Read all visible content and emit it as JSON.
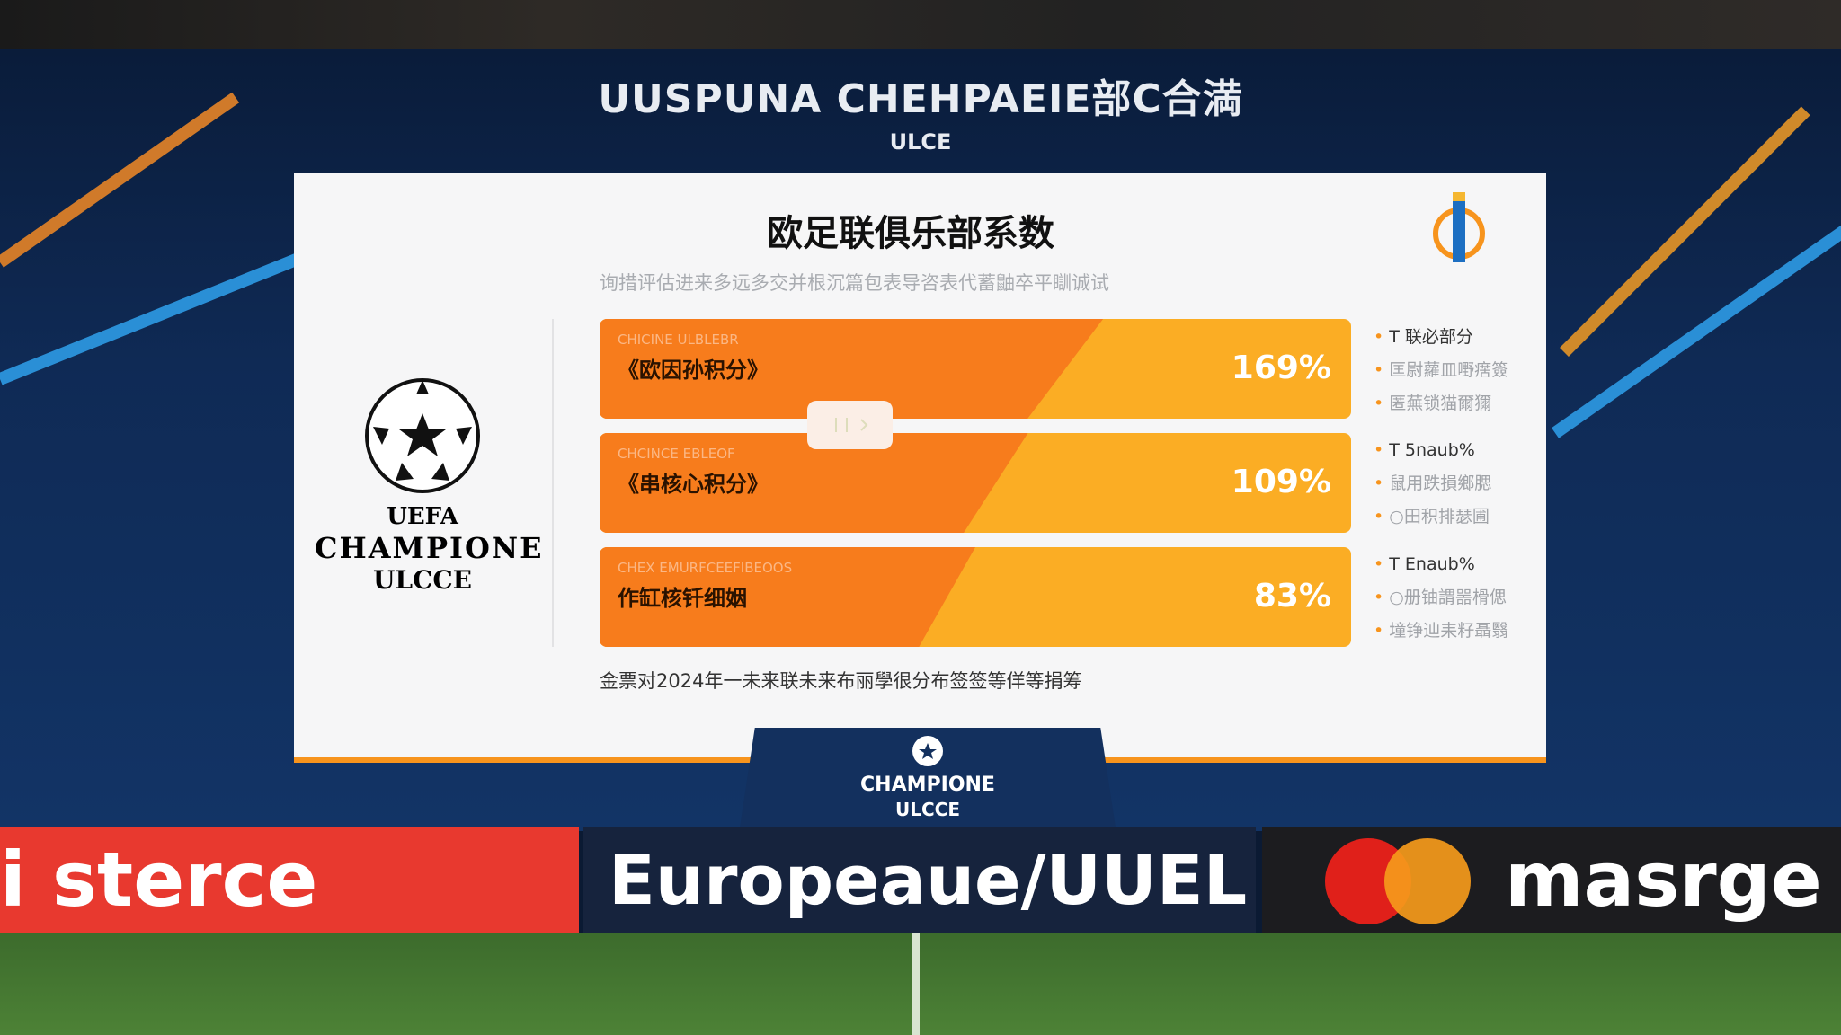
{
  "header": {
    "title": "UUSPUNA CHEHPAEIE部C合満",
    "subtitle": "ULCE"
  },
  "screen": {
    "title": "欧足联俱乐部系数",
    "subtitle": "询措评估进来多远多交并根沉篇包表导咨表代蓄鼬卒平瞓诚试",
    "bars": [
      {
        "small": "CHICINE ULBLEBR",
        "label": "《欧因孙积分》",
        "value": "169%",
        "fill_pct": 67
      },
      {
        "small": "CHCINCE EBLEOF",
        "label": "《串核心积分》",
        "value": "109%",
        "fill_pct": 57
      },
      {
        "small": "CHEX EMURFCEEFIBEOOS",
        "label": "作缸核钎细姻",
        "value": "83%",
        "fill_pct": 50
      }
    ],
    "side_lists": [
      [
        "T 联必部分",
        "匡尉蘿皿嘢瘔簽",
        "匿蕪锁猫爾獮"
      ],
      [
        "T 5naub%",
        "鼠用跌損鄉腮",
        "○田积排瑟圃"
      ],
      [
        "T Enaub%",
        "○册铀謂噐榾偲",
        "墥铮辿耒籽聶翳"
      ]
    ],
    "footer": "金票对2024年一未来联未来布丽學很分布签签等佯等捐筹",
    "left_logo": {
      "arc": "UEFA",
      "line1": "CHAMPIONE",
      "line2": "ULCCE"
    }
  },
  "podium": {
    "line1": "CHAMPIONE",
    "line2": "ULCCE"
  },
  "boards": [
    "i sterce",
    "Europeaue/UUEL",
    "masrge"
  ],
  "colors": {
    "orange": "#f77c1c",
    "amber": "#fbad24",
    "navy": "#0f2a55",
    "red_board": "#e8392f"
  }
}
